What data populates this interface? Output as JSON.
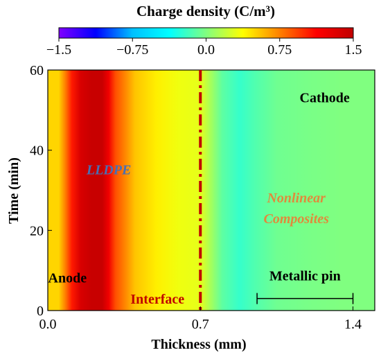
{
  "chart_data": {
    "type": "heatmap",
    "colorbar": {
      "title": "Charge density (C/m³)",
      "min": -1.5,
      "max": 1.5,
      "tick_values": [
        -1.5,
        -0.75,
        0.0,
        0.75,
        1.5
      ],
      "tick_labels": [
        "−1.5",
        "−0.75",
        "0.0",
        "0.75",
        "1.5"
      ],
      "colormap": "jet",
      "colors": [
        "#8000ff",
        "#0000ff",
        "#00c0ff",
        "#00ffff",
        "#80ff80",
        "#ffff00",
        "#ff8000",
        "#ff0000",
        "#c00000"
      ]
    },
    "xlabel": "Thickness (mm)",
    "ylabel": "Time (min)",
    "xlim": [
      0.0,
      1.5
    ],
    "ylim": [
      0,
      60
    ],
    "x_ticks": [
      0.0,
      0.7,
      1.4
    ],
    "x_tick_labels": [
      "0.0",
      "0.7",
      "1.4"
    ],
    "y_ticks": [
      0,
      20,
      40,
      60
    ],
    "y_tick_labels": [
      "0",
      "20",
      "40",
      "60"
    ],
    "density_profile": {
      "description_units": "thickness mm vs charge density C/m³ (constant over time)",
      "x": [
        0.0,
        0.05,
        0.08,
        0.11,
        0.15,
        0.2,
        0.25,
        0.28,
        0.31,
        0.35,
        0.4,
        0.5,
        0.6,
        0.7,
        0.75,
        0.8,
        0.88,
        0.95,
        1.05,
        1.2,
        1.35,
        1.5
      ],
      "values": [
        0.5,
        0.5,
        0.75,
        1.05,
        1.35,
        1.45,
        1.45,
        1.2,
        0.9,
        0.75,
        0.55,
        0.42,
        0.33,
        0.3,
        0.1,
        -0.1,
        -0.22,
        -0.14,
        -0.05,
        -0.02,
        0.0,
        0.0
      ]
    },
    "interface": {
      "x": 0.7,
      "label": "Interface",
      "color": "#c00000"
    },
    "annotations": {
      "anode": {
        "text": "Anode",
        "x": 0.09,
        "y": 7
      },
      "cathode": {
        "text": "Cathode",
        "x": 1.27,
        "y": 52
      },
      "lldpe": {
        "text": "LLDPE",
        "x": 0.28,
        "y": 34,
        "color": "#4a6fb3"
      },
      "nonlinear": {
        "line1": "Nonlinear",
        "line2": "Composites",
        "x": 1.14,
        "y": 27,
        "color": "#e08a3c"
      }
    },
    "metallic_pin": {
      "label": "Metallic pin",
      "x_start": 0.96,
      "x_end": 1.4,
      "y": 3
    }
  }
}
